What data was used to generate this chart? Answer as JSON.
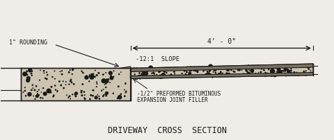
{
  "title": "DRIVEWAY  CROSS  SECTION",
  "title_fontsize": 8.5,
  "label_1rounding": "1\" ROUNDING",
  "label_slope": "-12:1  SLOPE",
  "label_joint_1": "-1/2\" PREFORMED BITUMINOUS",
  "label_joint_2": "EXPANSION JOINT FILLER",
  "label_dim": "4' - 0\"",
  "bg_color": "#f0ede8",
  "line_color": "#1a1a1a",
  "fill_color": "#ccc4b0",
  "dark_fill": "#7a7060"
}
